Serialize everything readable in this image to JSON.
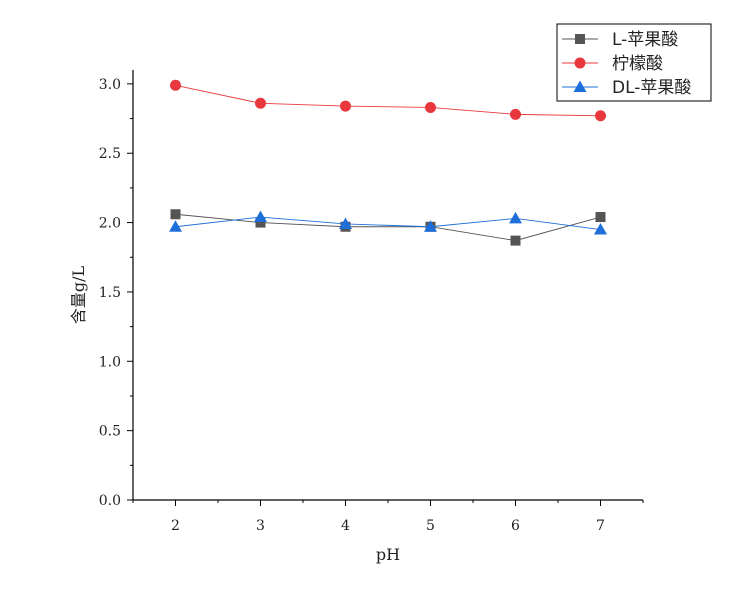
{
  "chart_data": {
    "type": "line",
    "xlabel": "pH",
    "ylabel": "含量g/L",
    "x": [
      2,
      3,
      4,
      5,
      6,
      7
    ],
    "xlim": [
      1.5,
      7.5
    ],
    "ylim": [
      0,
      3.1
    ],
    "xticks": [
      "2",
      "3",
      "4",
      "5",
      "6",
      "7"
    ],
    "yticks": [
      "0.0",
      "0.5",
      "1.0",
      "1.5",
      "2.0",
      "2.5",
      "3.0"
    ],
    "grid": false,
    "legend_position": "top-right",
    "series": [
      {
        "name": "L-苹果酸",
        "values": [
          2.06,
          2.0,
          1.97,
          1.97,
          1.87,
          2.04
        ],
        "color": "#555555",
        "marker": "square"
      },
      {
        "name": "柠檬酸",
        "values": [
          2.99,
          2.86,
          2.84,
          2.83,
          2.78,
          2.77
        ],
        "color": "#e8383d",
        "marker": "circle"
      },
      {
        "name": "DL-苹果酸",
        "values": [
          1.97,
          2.04,
          1.99,
          1.97,
          2.03,
          1.95
        ],
        "color": "#1e6fd9",
        "marker": "triangle"
      }
    ]
  }
}
